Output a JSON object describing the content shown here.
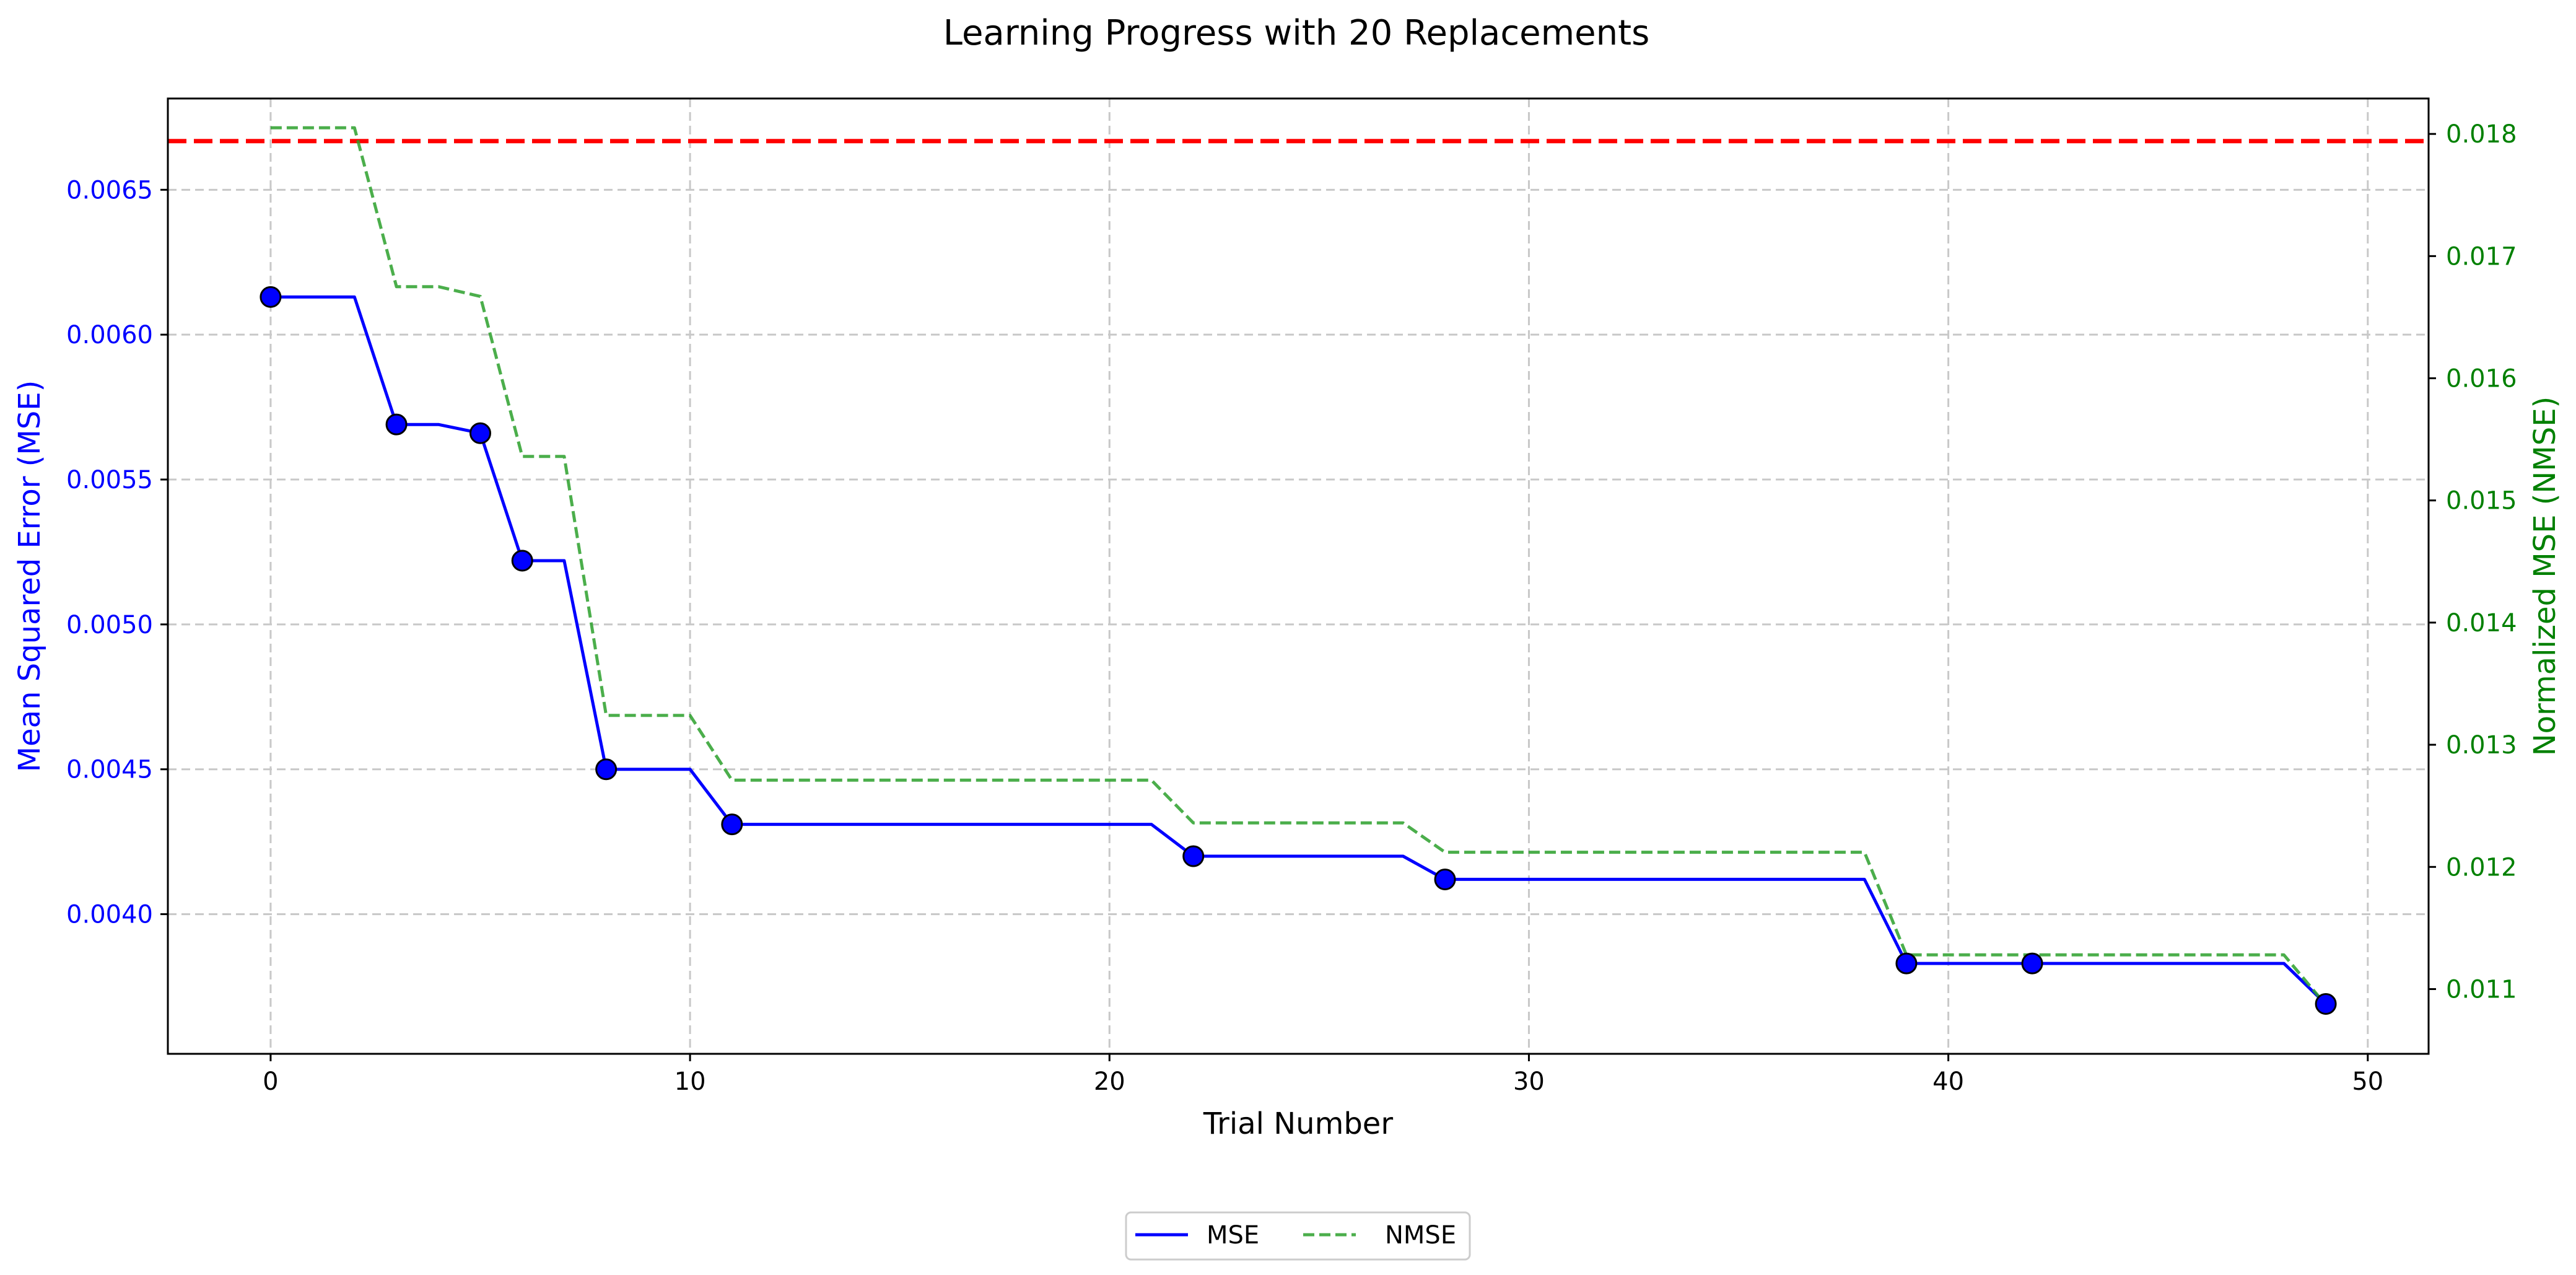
{
  "chart_data": {
    "type": "line",
    "title": "Learning Progress with 20 Replacements",
    "xlabel": "Trial Number",
    "ylabel": "Mean Squared Error (MSE)",
    "y2label": "Normalized MSE (NMSE)",
    "xlim": [
      -2.45,
      51.45
    ],
    "ylim": [
      0.003518,
      0.006815
    ],
    "y2lim": [
      0.01047,
      0.01829
    ],
    "x_ticks": [
      0,
      10,
      20,
      30,
      40,
      50
    ],
    "y_ticks": [
      0.004,
      0.0045,
      0.005,
      0.0055,
      0.006,
      0.0065
    ],
    "y2_ticks": [
      0.011,
      0.012,
      0.013,
      0.014,
      0.015,
      0.016,
      0.017,
      0.018
    ],
    "grid": true,
    "legend_position": "bottom-center",
    "colors": {
      "mse": "#0000ff",
      "nmse": "#2ca02c",
      "reference": "#ff0000",
      "left_axis_text": "#0000ff",
      "right_axis_text": "#008000",
      "grid": "#c8c8c8"
    },
    "reference_line": {
      "y": 0.006668
    },
    "series": [
      {
        "name": "MSE",
        "axis": "left",
        "style": "solid",
        "x": [
          0,
          1,
          2,
          3,
          4,
          5,
          6,
          7,
          8,
          9,
          10,
          11,
          12,
          13,
          14,
          15,
          16,
          17,
          18,
          19,
          20,
          21,
          22,
          23,
          24,
          25,
          26,
          27,
          28,
          29,
          30,
          31,
          32,
          33,
          34,
          35,
          36,
          37,
          38,
          39,
          40,
          41,
          42,
          43,
          44,
          45,
          46,
          47,
          48,
          49
        ],
        "values": [
          0.00613,
          0.00613,
          0.00613,
          0.00569,
          0.00569,
          0.00566,
          0.00522,
          0.00522,
          0.0045,
          0.0045,
          0.0045,
          0.00431,
          0.00431,
          0.00431,
          0.00431,
          0.00431,
          0.00431,
          0.00431,
          0.00431,
          0.00431,
          0.00431,
          0.00431,
          0.0042,
          0.0042,
          0.0042,
          0.0042,
          0.0042,
          0.0042,
          0.00412,
          0.00412,
          0.00412,
          0.00412,
          0.00412,
          0.00412,
          0.00412,
          0.00412,
          0.00412,
          0.00412,
          0.00412,
          0.00383,
          0.00383,
          0.00383,
          0.00383,
          0.00383,
          0.00383,
          0.00383,
          0.00383,
          0.00383,
          0.00383,
          0.00369
        ]
      },
      {
        "name": "NMSE",
        "axis": "right",
        "style": "dashed",
        "x": [
          0,
          1,
          2,
          3,
          4,
          5,
          6,
          7,
          8,
          9,
          10,
          11,
          12,
          13,
          14,
          15,
          16,
          17,
          18,
          19,
          20,
          21,
          22,
          23,
          24,
          25,
          26,
          27,
          28,
          29,
          30,
          31,
          32,
          33,
          34,
          35,
          36,
          37,
          38,
          39,
          40,
          41,
          42,
          43,
          44,
          45,
          46,
          47,
          48,
          49
        ],
        "values": [
          0.01805,
          0.01805,
          0.01805,
          0.01675,
          0.01675,
          0.01667,
          0.01536,
          0.01536,
          0.01324,
          0.01324,
          0.01324,
          0.01271,
          0.01271,
          0.01271,
          0.01271,
          0.01271,
          0.01271,
          0.01271,
          0.01271,
          0.01271,
          0.01271,
          0.01271,
          0.01236,
          0.01236,
          0.01236,
          0.01236,
          0.01236,
          0.01236,
          0.01212,
          0.01212,
          0.01212,
          0.01212,
          0.01212,
          0.01212,
          0.01212,
          0.01212,
          0.01212,
          0.01212,
          0.01212,
          0.01128,
          0.01128,
          0.01128,
          0.01128,
          0.01128,
          0.01128,
          0.01128,
          0.01128,
          0.01128,
          0.01128,
          0.01087
        ]
      }
    ],
    "markers": {
      "x": [
        0,
        3,
        5,
        6,
        8,
        11,
        22,
        28,
        39,
        42,
        49
      ],
      "values": [
        0.00613,
        0.00569,
        0.00566,
        0.00522,
        0.0045,
        0.00431,
        0.0042,
        0.00412,
        0.00383,
        0.00383,
        0.00369
      ]
    }
  }
}
